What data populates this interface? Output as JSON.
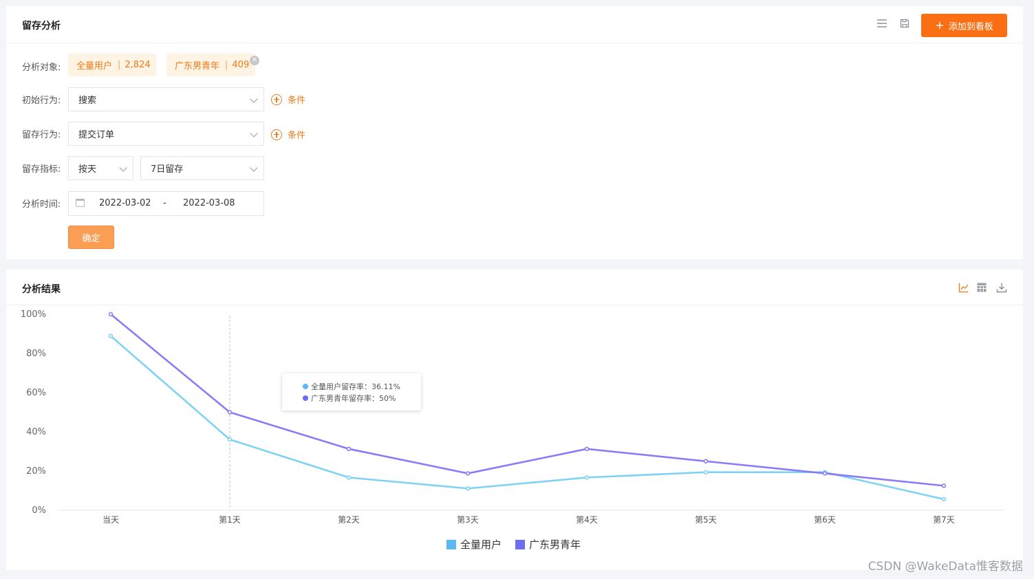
{
  "top_panel": {
    "title": "留存分析",
    "add_button_label": "添加到看板",
    "subjects_label": "分析对象:",
    "subjects": [
      {
        "name": "全量用户",
        "count": "2,824"
      },
      {
        "name": "广东男青年",
        "count": "409"
      }
    ],
    "initial_label": "初始行为:",
    "initial_value": "搜索",
    "retention_label": "留存行为:",
    "retention_value": "提交订单",
    "condition_label": "条件",
    "metric_label": "留存指标:",
    "metric_unit": "按天",
    "metric_value": "7日留存",
    "time_label": "分析时间:",
    "date_start": "2022-03-02",
    "date_sep": "-",
    "date_end": "2022-03-08",
    "confirm_label": "确定"
  },
  "result_panel": {
    "title": "分析结果",
    "icons": [
      "line-chart-icon",
      "table-icon",
      "download-icon"
    ]
  },
  "chart_data": {
    "type": "line",
    "categories": [
      "当天",
      "第1天",
      "第2天",
      "第3天",
      "第4天",
      "第5天",
      "第6天",
      "第7天"
    ],
    "yticks": [
      "0%",
      "20%",
      "40%",
      "60%",
      "80%",
      "100%"
    ],
    "ylim": [
      0,
      100
    ],
    "series": [
      {
        "name": "全量用户",
        "color": "#7ed3f4",
        "values": [
          88.9,
          36.11,
          16.7,
          11.1,
          16.7,
          19.4,
          19.4,
          5.6
        ]
      },
      {
        "name": "广东男青年",
        "color": "#8a7cf6",
        "values": [
          100,
          50,
          31.3,
          18.8,
          31.3,
          25,
          18.8,
          12.5
        ]
      }
    ],
    "legend": [
      "全量用户",
      "广东男青年"
    ],
    "legend_colors": [
      "#5bb8f5",
      "#6e6cf2"
    ],
    "tooltip": {
      "category_index": 1,
      "lines": [
        {
          "text": "全量用户留存率：36.11%",
          "color": "#5bb8f5"
        },
        {
          "text": "广东男青年留存率：50%",
          "color": "#6e6cf2"
        }
      ]
    }
  },
  "watermark": "CSDN @WakeData惟客数据"
}
